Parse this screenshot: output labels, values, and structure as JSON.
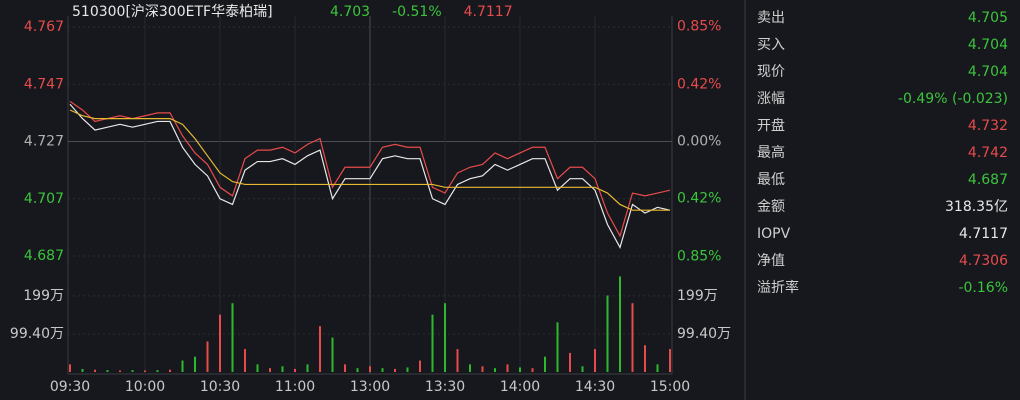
{
  "chart_data": {
    "type": "line",
    "title": "510300[沪深300ETF华泰柏瑞]",
    "header": [
      {
        "text": "4.703",
        "color": "#3cc43c"
      },
      {
        "text": "-0.51%",
        "color": "#3cc43c"
      },
      {
        "text": "4.7117",
        "color": "#e84b4b"
      }
    ],
    "x": [
      "09:30",
      null,
      null,
      null,
      null,
      null,
      "10:00",
      null,
      null,
      null,
      null,
      null,
      "10:30",
      null,
      null,
      null,
      null,
      null,
      "11:00",
      null,
      null,
      null,
      null,
      null,
      "13:00",
      null,
      null,
      null,
      null,
      null,
      "13:30",
      null,
      null,
      null,
      null,
      null,
      "14:00",
      null,
      null,
      null,
      null,
      null,
      "14:30",
      null,
      null,
      null,
      null,
      null,
      "15:00"
    ],
    "ylim": [
      4.687,
      4.767
    ],
    "yticks": [
      4.767,
      4.747,
      4.727,
      4.707,
      4.687
    ],
    "y2lim": [
      -0.846,
      0.846
    ],
    "y2ticks": [
      {
        "value": 0.85,
        "label": "0.85%"
      },
      {
        "value": 0.42,
        "label": "0.42%"
      },
      {
        "value": 0,
        "label": "0.00%"
      },
      {
        "value": -0.42,
        "label": "0.42%"
      },
      {
        "value": -0.85,
        "label": "0.85%"
      }
    ],
    "grid": true,
    "series": [
      {
        "color": "#e84b4b",
        "values": [
          4.741,
          4.738,
          4.734,
          4.735,
          4.736,
          4.735,
          4.736,
          4.737,
          4.737,
          4.729,
          4.723,
          4.719,
          4.711,
          4.708,
          4.721,
          4.724,
          4.724,
          4.725,
          4.723,
          4.726,
          4.728,
          4.711,
          4.718,
          4.718,
          4.718,
          4.725,
          4.726,
          4.725,
          4.725,
          4.711,
          4.709,
          4.716,
          4.718,
          4.719,
          4.723,
          4.721,
          4.723,
          4.725,
          4.725,
          4.714,
          4.718,
          4.718,
          4.714,
          4.702,
          4.694,
          4.709,
          4.708,
          4.709,
          4.71
        ]
      },
      {
        "color": "#e8e8e8",
        "values": [
          4.74,
          4.735,
          4.731,
          4.732,
          4.733,
          4.732,
          4.733,
          4.734,
          4.734,
          4.725,
          4.719,
          4.715,
          4.707,
          4.705,
          4.717,
          4.72,
          4.72,
          4.721,
          4.719,
          4.722,
          4.724,
          4.707,
          4.714,
          4.714,
          4.714,
          4.721,
          4.722,
          4.721,
          4.721,
          4.707,
          4.705,
          4.712,
          4.714,
          4.715,
          4.719,
          4.717,
          4.719,
          4.721,
          4.721,
          4.71,
          4.714,
          4.714,
          4.71,
          4.698,
          4.69,
          4.705,
          4.702,
          4.704,
          4.703
        ]
      },
      {
        "color": "#e8b830",
        "values": [
          4.738,
          4.736,
          4.735,
          4.735,
          4.735,
          4.735,
          4.735,
          4.735,
          4.735,
          4.733,
          4.728,
          4.722,
          4.716,
          4.713,
          4.712,
          4.712,
          4.712,
          4.712,
          4.712,
          4.712,
          4.712,
          4.712,
          4.712,
          4.712,
          4.712,
          4.712,
          4.712,
          4.712,
          4.712,
          4.712,
          4.711,
          4.711,
          4.711,
          4.711,
          4.711,
          4.711,
          4.711,
          4.711,
          4.711,
          4.711,
          4.711,
          4.711,
          4.711,
          4.709,
          4.705,
          4.703,
          4.703,
          4.703,
          4.703
        ]
      }
    ],
    "volume": {
      "ylim": [
        0,
        298.2
      ],
      "yticks": [
        {
          "value": 199,
          "label": "199万"
        },
        {
          "value": 99.4,
          "label": "99.40万"
        }
      ],
      "values": [
        20,
        8,
        6,
        5,
        4,
        5,
        4,
        5,
        6,
        30,
        40,
        80,
        150,
        180,
        60,
        20,
        10,
        15,
        8,
        20,
        120,
        90,
        20,
        10,
        15,
        10,
        8,
        12,
        30,
        150,
        180,
        60,
        20,
        15,
        10,
        20,
        12,
        10,
        40,
        130,
        50,
        15,
        60,
        200,
        250,
        180,
        70,
        20,
        60
      ],
      "colors": [
        "#e84b4b",
        "#2eb82e",
        "#e84b4b",
        "#2eb82e",
        "#e84b4b",
        "#2eb82e",
        "#e84b4b",
        "#2eb82e",
        "#e84b4b",
        "#2eb82e",
        "#2eb82e",
        "#e84b4b",
        "#e84b4b",
        "#2eb82e",
        "#e84b4b",
        "#2eb82e",
        "#e84b4b",
        "#2eb82e",
        "#e84b4b",
        "#2eb82e",
        "#e84b4b",
        "#2eb82e",
        "#e84b4b",
        "#2eb82e",
        "#e84b4b",
        "#2eb82e",
        "#e84b4b",
        "#2eb82e",
        "#e84b4b",
        "#2eb82e",
        "#2eb82e",
        "#e84b4b",
        "#2eb82e",
        "#e84b4b",
        "#2eb82e",
        "#e84b4b",
        "#2eb82e",
        "#e84b4b",
        "#2eb82e",
        "#2eb82e",
        "#e84b4b",
        "#2eb82e",
        "#e84b4b",
        "#2eb82e",
        "#2eb82e",
        "#e84b4b",
        "#e84b4b",
        "#2eb82e",
        "#e84b4b"
      ]
    }
  },
  "quote_panel": {
    "rows": [
      {
        "label": "卖出",
        "value": "4.705",
        "color": "#3cc43c"
      },
      {
        "label": "买入",
        "value": "4.704",
        "color": "#3cc43c"
      },
      {
        "label": "现价",
        "value": "4.704",
        "color": "#3cc43c"
      },
      {
        "label": "涨幅",
        "value": "-0.49% (-0.023)",
        "color": "#3cc43c"
      },
      {
        "label": "开盘",
        "value": "4.732",
        "color": "#e84b4b"
      },
      {
        "label": "最高",
        "value": "4.742",
        "color": "#e84b4b"
      },
      {
        "label": "最低",
        "value": "4.687",
        "color": "#3cc43c"
      },
      {
        "label": "金额",
        "value": "318.35亿",
        "color": "#e8e8e8"
      },
      {
        "label": "IOPV",
        "value": "4.7117",
        "color": "#e8e8e8"
      },
      {
        "label": "净值",
        "value": "4.7306",
        "color": "#e84b4b"
      },
      {
        "label": "溢折率",
        "value": "-0.16%",
        "color": "#3cc43c"
      }
    ]
  }
}
